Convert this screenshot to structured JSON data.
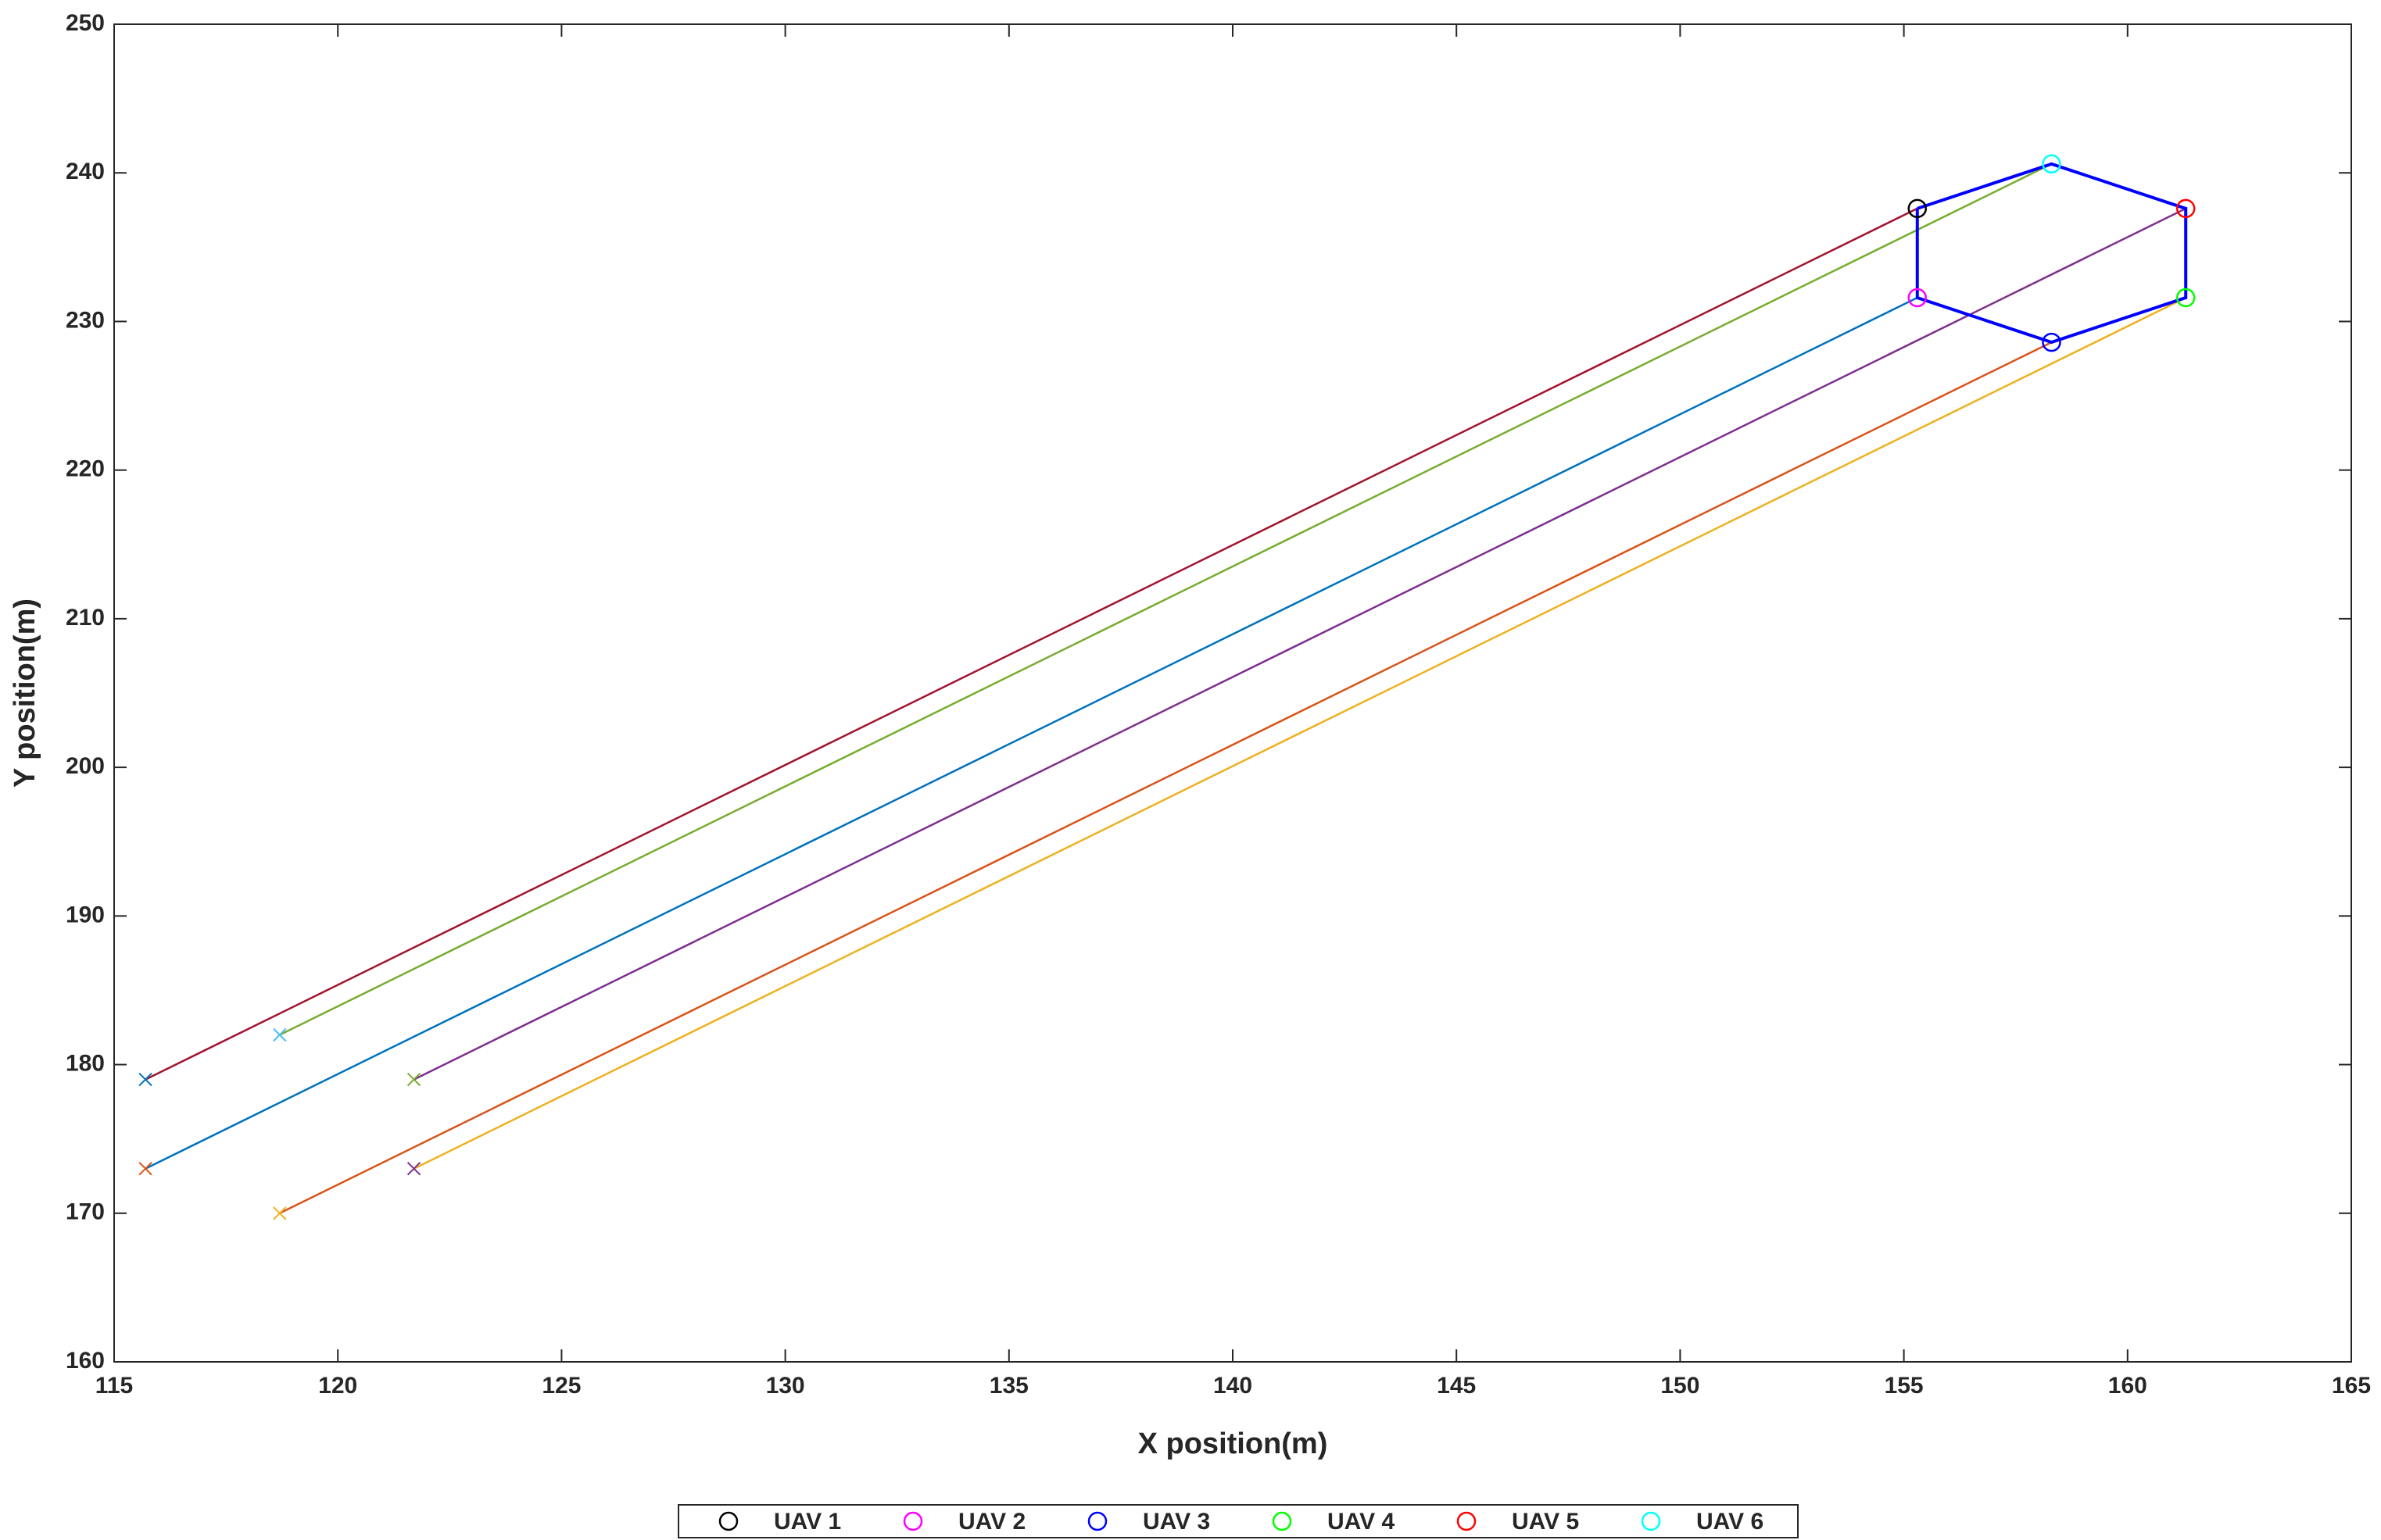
{
  "chart_data": {
    "type": "line",
    "xlabel": "X position(m)",
    "ylabel": "Y position(m)",
    "xlim": [
      115,
      165
    ],
    "ylim": [
      160,
      250
    ],
    "xticks": [
      115,
      120,
      125,
      130,
      135,
      140,
      145,
      150,
      155,
      160,
      165
    ],
    "yticks": [
      160,
      170,
      180,
      190,
      200,
      210,
      220,
      230,
      240,
      250
    ],
    "legend": "south",
    "series": [
      {
        "name": "UAV 1",
        "color": "#000000",
        "line_color": "#a2142f",
        "start_color": "#0072bd",
        "x": [
          115.7,
          155.3
        ],
        "values": [
          179,
          237.6
        ]
      },
      {
        "name": "UAV 2",
        "color": "#ff00ff",
        "line_color": "#0072bd",
        "start_color": "#d95319",
        "x": [
          115.7,
          155.3
        ],
        "values": [
          173,
          231.6
        ]
      },
      {
        "name": "UAV 3",
        "color": "#0000ff",
        "line_color": "#d95319",
        "start_color": "#edb120",
        "x": [
          118.7,
          158.3
        ],
        "values": [
          170,
          228.6
        ]
      },
      {
        "name": "UAV 4",
        "color": "#00ff00",
        "line_color": "#edb120",
        "start_color": "#7e2f8e",
        "x": [
          121.7,
          161.3
        ],
        "values": [
          173,
          231.6
        ]
      },
      {
        "name": "UAV 5",
        "color": "#ff0000",
        "line_color": "#7e2f8e",
        "start_color": "#77ac30",
        "x": [
          121.7,
          161.3
        ],
        "values": [
          179,
          237.6
        ]
      },
      {
        "name": "UAV 6",
        "color": "#00ffff",
        "line_color": "#77ac30",
        "start_color": "#4dbeee",
        "x": [
          118.7,
          158.3
        ],
        "values": [
          182,
          240.6
        ]
      }
    ],
    "formation": {
      "color": "#0000ff",
      "x": [
        155.3,
        158.3,
        161.3,
        161.3,
        158.3,
        155.3,
        155.3
      ],
      "values": [
        237.6,
        240.6,
        237.6,
        231.6,
        228.6,
        231.6,
        237.6
      ]
    }
  }
}
